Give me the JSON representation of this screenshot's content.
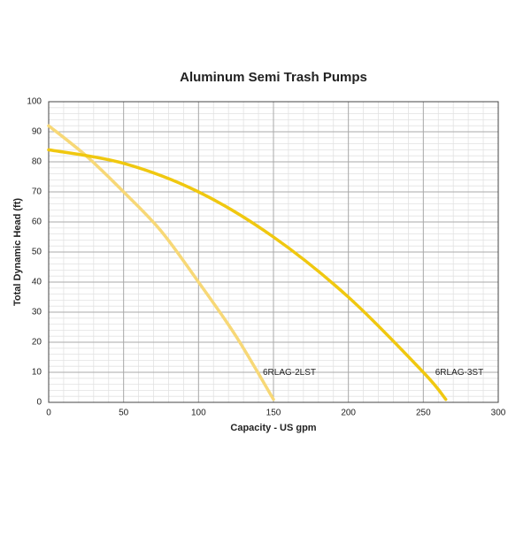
{
  "chart_data": {
    "type": "line",
    "title": "Aluminum Semi Trash Pumps",
    "x_label": "Capacity - US gpm",
    "y_label": "Total Dynamic Head (ft)",
    "xlim": [
      0,
      300
    ],
    "ylim": [
      0,
      100
    ],
    "xticks": [
      0,
      50,
      100,
      150,
      200,
      250,
      300
    ],
    "yticks": [
      0,
      10,
      20,
      30,
      40,
      50,
      60,
      70,
      80,
      90,
      100
    ],
    "grid": true,
    "minor_x_step": 10,
    "minor_y_step": 2,
    "series": [
      {
        "name": "6RLAG-2LST",
        "color": "#f7d877",
        "x": [
          0,
          25,
          50,
          75,
          100,
          125,
          150
        ],
        "values": [
          92,
          82,
          70,
          57,
          40,
          22,
          1
        ]
      },
      {
        "name": "6RLAG-3ST",
        "color": "#f0c810",
        "x": [
          0,
          50,
          100,
          150,
          200,
          250,
          265
        ],
        "values": [
          84,
          79.5,
          70,
          55,
          35,
          10,
          1
        ]
      }
    ]
  }
}
